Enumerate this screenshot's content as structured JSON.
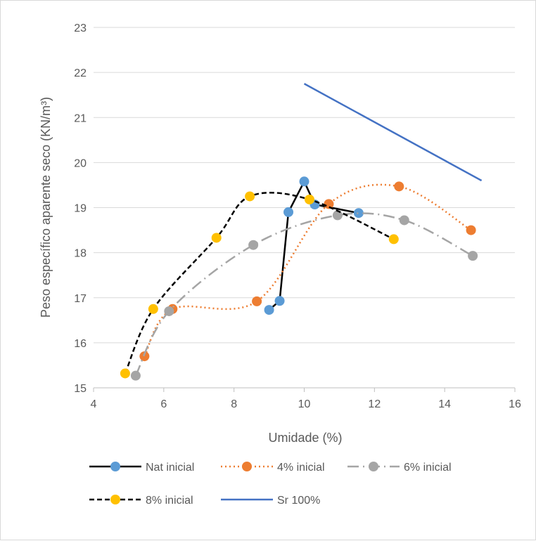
{
  "chart_data": {
    "type": "scatter",
    "title": "",
    "xlabel": "Umidade (%)",
    "ylabel": "Peso específico aparente seco (KN/m³)",
    "xlim": [
      4,
      16
    ],
    "ylim": [
      15,
      23
    ],
    "xticks": [
      "4",
      "6",
      "8",
      "10",
      "12",
      "14",
      "16"
    ],
    "yticks": [
      "15",
      "16",
      "17",
      "18",
      "19",
      "20",
      "21",
      "22",
      "23"
    ],
    "grid": "horizontal",
    "legend_position": "bottom",
    "series": [
      {
        "name": "Nat inicial",
        "color": "#000000",
        "line_style": "solid",
        "marker_color": "#5B9BD5",
        "smooth": false,
        "points": [
          [
            9.0,
            16.73
          ],
          [
            9.3,
            16.93
          ],
          [
            9.55,
            18.9
          ],
          [
            10.0,
            19.58
          ],
          [
            10.3,
            19.07
          ],
          [
            11.55,
            18.88
          ]
        ]
      },
      {
        "name": "4% inicial",
        "color": "#ED7D31",
        "line_style": "dotted",
        "marker_color": "#ED7D31",
        "smooth": true,
        "points": [
          [
            5.45,
            15.7
          ],
          [
            6.25,
            16.75
          ],
          [
            8.65,
            16.92
          ],
          [
            10.7,
            19.08
          ],
          [
            12.7,
            19.47
          ],
          [
            14.75,
            18.5
          ]
        ]
      },
      {
        "name": "6% inicial",
        "color": "#A5A5A5",
        "line_style": "dashdot",
        "marker_color": "#A5A5A5",
        "smooth": true,
        "points": [
          [
            5.2,
            15.27
          ],
          [
            6.15,
            16.7
          ],
          [
            8.55,
            18.17
          ],
          [
            10.95,
            18.83
          ],
          [
            12.85,
            18.72
          ],
          [
            14.8,
            17.93
          ]
        ]
      },
      {
        "name": "8% inicial",
        "color": "#000000",
        "line_style": "dashed",
        "marker_color": "#FFC000",
        "smooth": true,
        "points": [
          [
            4.9,
            15.32
          ],
          [
            5.7,
            16.75
          ],
          [
            7.5,
            18.33
          ],
          [
            8.45,
            19.25
          ],
          [
            10.15,
            19.18
          ],
          [
            12.55,
            18.3
          ]
        ]
      },
      {
        "name": "Sr 100%",
        "color": "#4472C4",
        "line_style": "solid",
        "marker_color": "",
        "smooth": false,
        "points": [
          [
            10.0,
            21.75
          ],
          [
            15.05,
            19.6
          ]
        ]
      }
    ]
  }
}
